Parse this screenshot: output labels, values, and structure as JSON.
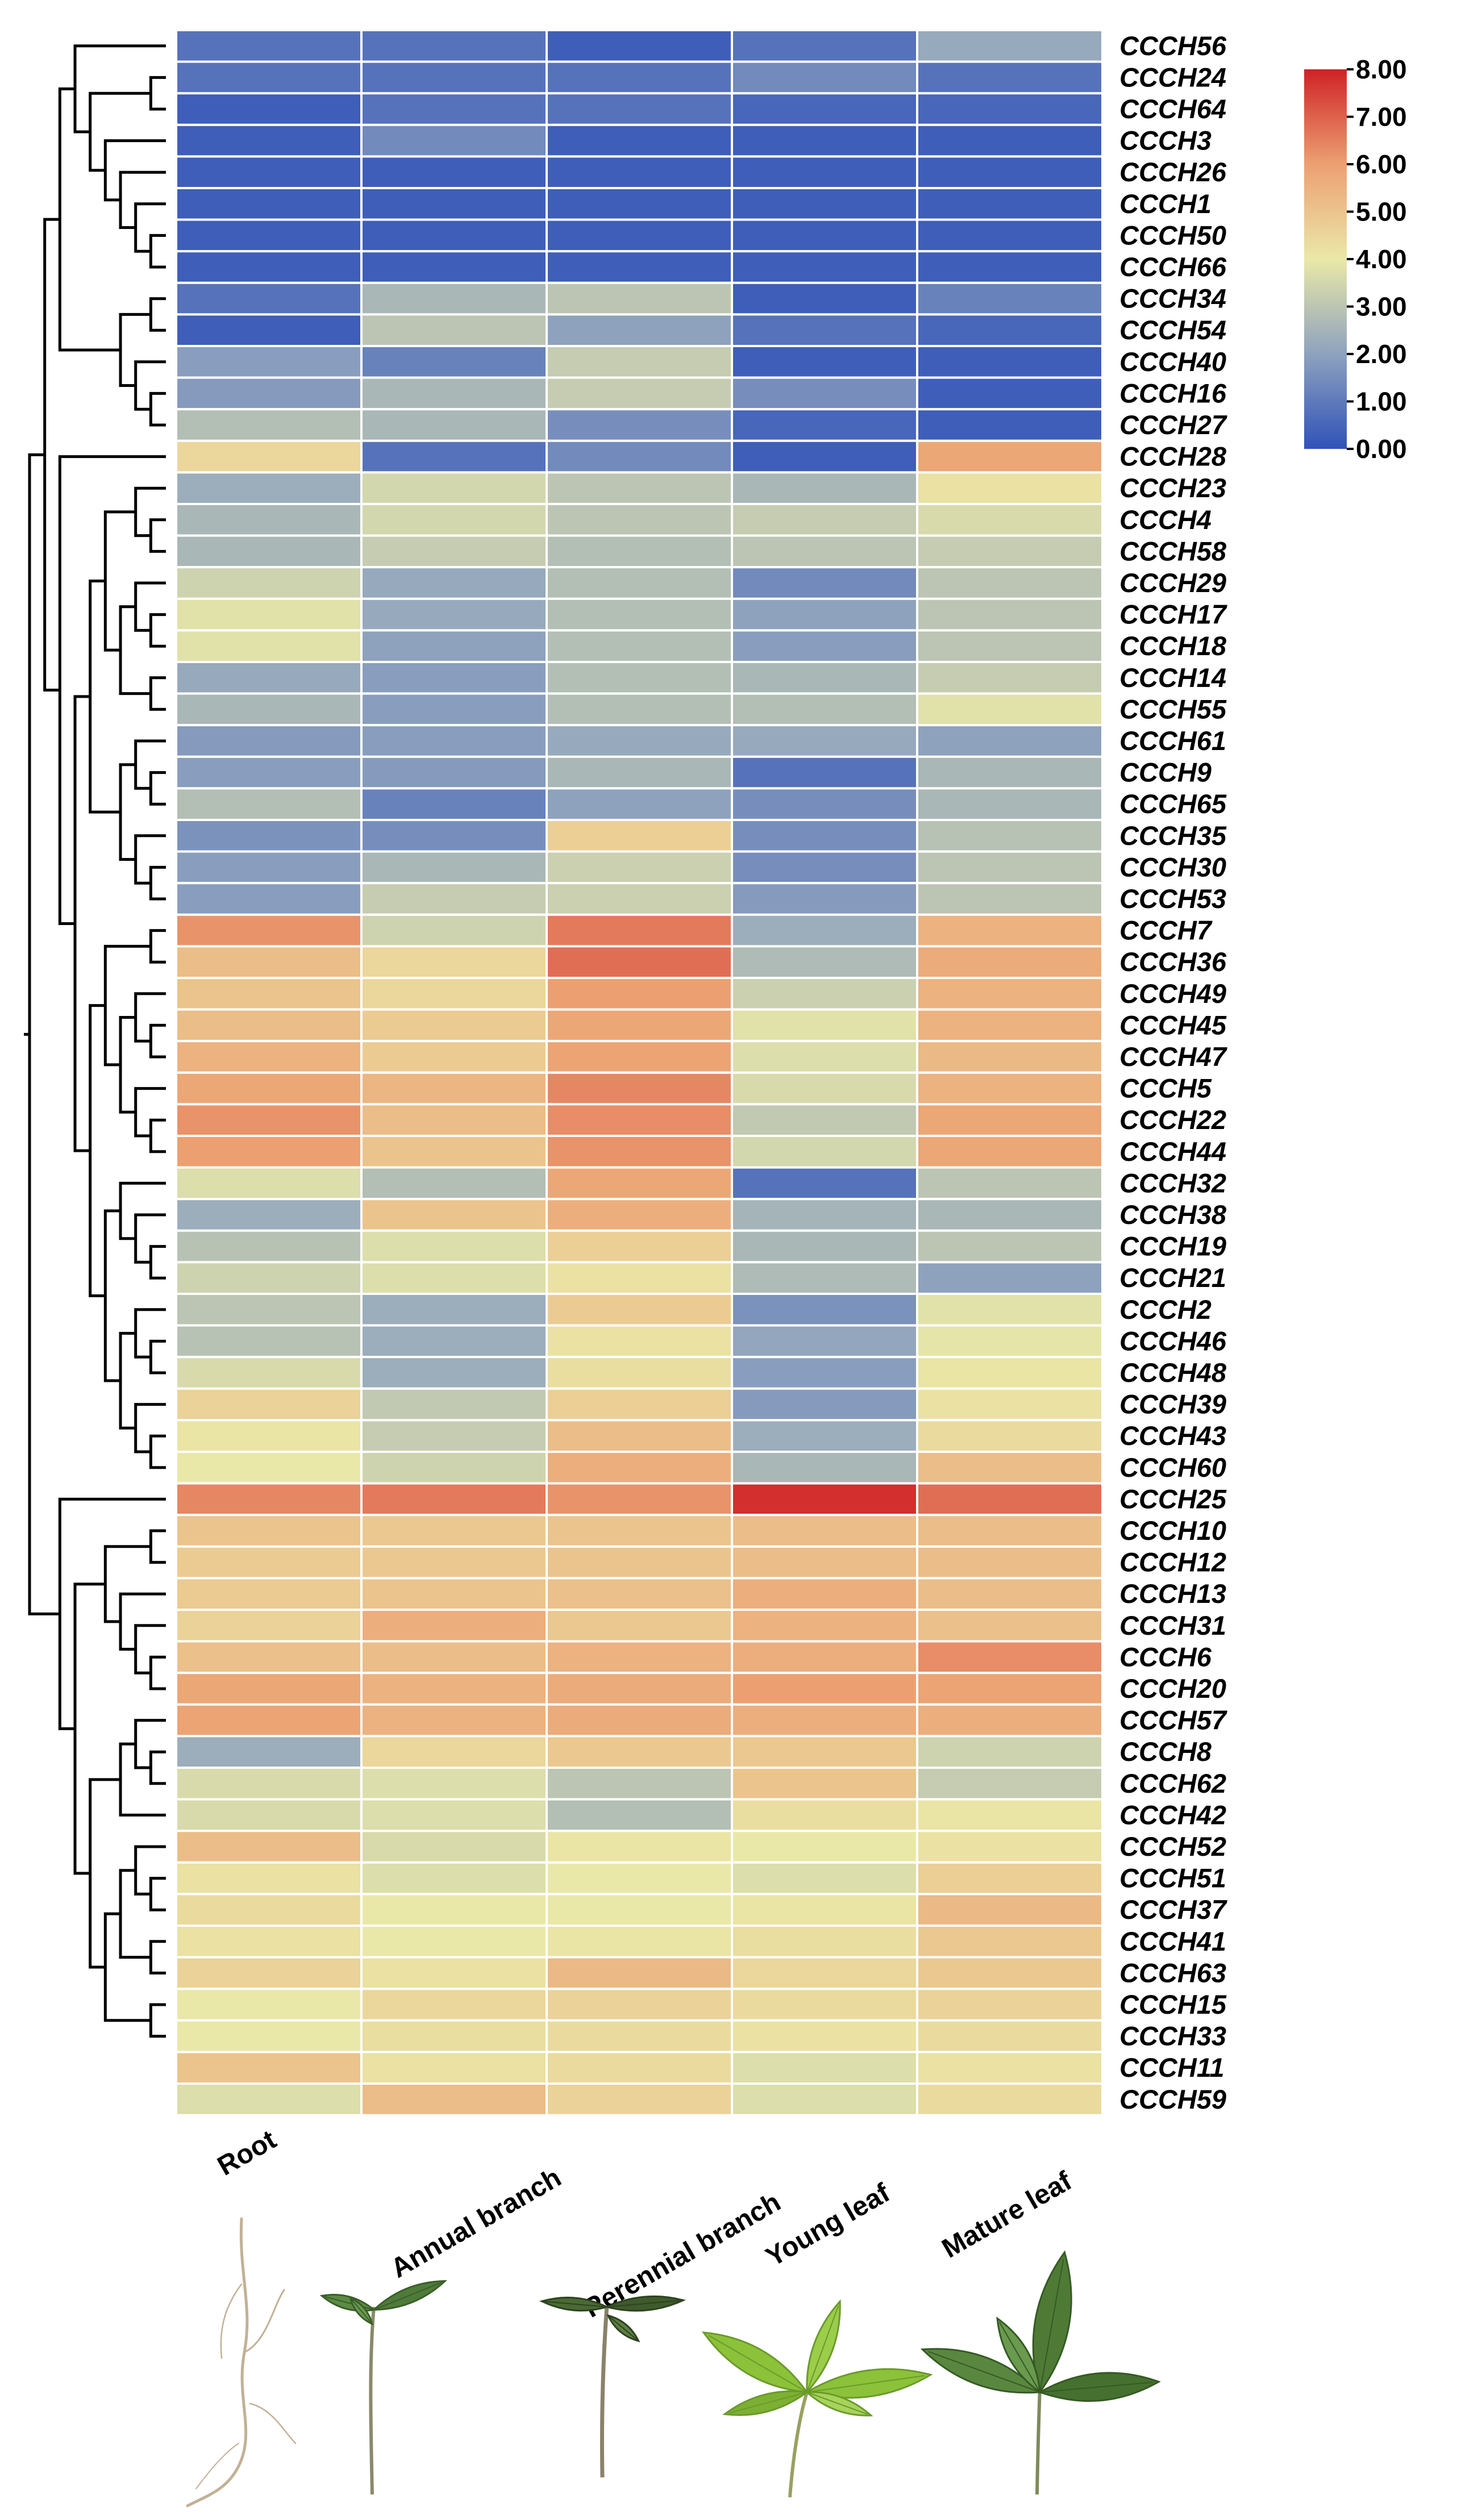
{
  "chart_data": {
    "type": "heatmap",
    "title": "",
    "xlabel": "",
    "ylabel": "",
    "columns": [
      "Root",
      "Annual branch",
      "Perennial branch",
      "Young leaf",
      "Mature leaf"
    ],
    "rows": [
      "CCCH56",
      "CCCH24",
      "CCCH64",
      "CCCH3",
      "CCCH26",
      "CCCH1",
      "CCCH50",
      "CCCH66",
      "CCCH34",
      "CCCH54",
      "CCCH40",
      "CCCH16",
      "CCCH27",
      "CCCH28",
      "CCCH23",
      "CCCH4",
      "CCCH58",
      "CCCH29",
      "CCCH17",
      "CCCH18",
      "CCCH14",
      "CCCH55",
      "CCCH61",
      "CCCH9",
      "CCCH65",
      "CCCH35",
      "CCCH30",
      "CCCH53",
      "CCCH7",
      "CCCH36",
      "CCCH49",
      "CCCH45",
      "CCCH47",
      "CCCH5",
      "CCCH22",
      "CCCH44",
      "CCCH32",
      "CCCH38",
      "CCCH19",
      "CCCH21",
      "CCCH2",
      "CCCH46",
      "CCCH48",
      "CCCH39",
      "CCCH43",
      "CCCH60",
      "CCCH25",
      "CCCH10",
      "CCCH12",
      "CCCH13",
      "CCCH31",
      "CCCH6",
      "CCCH20",
      "CCCH57",
      "CCCH8",
      "CCCH62",
      "CCCH42",
      "CCCH52",
      "CCCH51",
      "CCCH37",
      "CCCH41",
      "CCCH63",
      "CCCH15",
      "CCCH33",
      "CCCH11",
      "CCCH59"
    ],
    "values": [
      [
        0.8,
        0.8,
        0.3,
        0.8,
        2.2
      ],
      [
        0.8,
        0.8,
        0.8,
        1.4,
        0.8
      ],
      [
        0.3,
        0.8,
        0.8,
        0.5,
        0.5
      ],
      [
        0.3,
        1.4,
        0.3,
        0.3,
        0.3
      ],
      [
        0.3,
        0.3,
        0.3,
        0.3,
        0.3
      ],
      [
        0.3,
        0.3,
        0.3,
        0.3,
        0.3
      ],
      [
        0.3,
        0.3,
        0.3,
        0.3,
        0.3
      ],
      [
        0.3,
        0.3,
        0.3,
        0.3,
        0.3
      ],
      [
        0.8,
        2.6,
        3.0,
        0.3,
        1.2
      ],
      [
        0.3,
        3.0,
        2.0,
        0.8,
        0.5
      ],
      [
        1.9,
        1.2,
        3.2,
        0.3,
        0.3
      ],
      [
        1.8,
        2.6,
        3.2,
        1.5,
        0.3
      ],
      [
        2.8,
        2.6,
        1.5,
        0.5,
        0.3
      ],
      [
        4.5,
        0.8,
        1.4,
        0.3,
        5.8
      ],
      [
        2.3,
        3.5,
        3.0,
        2.6,
        4.2
      ],
      [
        2.6,
        3.5,
        3.0,
        3.2,
        3.6
      ],
      [
        2.6,
        3.2,
        2.8,
        3.0,
        3.2
      ],
      [
        3.4,
        2.2,
        2.8,
        1.4,
        3.0
      ],
      [
        3.8,
        2.2,
        2.8,
        2.0,
        3.0
      ],
      [
        3.8,
        2.0,
        2.8,
        1.9,
        3.0
      ],
      [
        2.2,
        1.9,
        2.8,
        2.6,
        3.2
      ],
      [
        2.6,
        1.9,
        2.8,
        2.8,
        3.8
      ],
      [
        1.8,
        1.9,
        2.2,
        2.2,
        2.0
      ],
      [
        1.9,
        1.8,
        2.6,
        0.8,
        2.6
      ],
      [
        2.8,
        1.2,
        2.0,
        1.5,
        2.6
      ],
      [
        1.6,
        1.5,
        4.7,
        1.5,
        2.9
      ],
      [
        1.9,
        2.6,
        3.3,
        1.5,
        3.0
      ],
      [
        1.9,
        3.2,
        3.3,
        1.8,
        3.0
      ],
      [
        6.2,
        3.4,
        6.6,
        2.3,
        5.5
      ],
      [
        5.2,
        4.5,
        6.8,
        2.7,
        5.7
      ],
      [
        5.0,
        4.5,
        6.0,
        3.3,
        5.5
      ],
      [
        5.2,
        4.8,
        5.8,
        3.8,
        5.5
      ],
      [
        5.5,
        4.8,
        5.9,
        3.7,
        5.3
      ],
      [
        5.8,
        5.4,
        6.4,
        3.6,
        5.5
      ],
      [
        6.2,
        5.2,
        6.3,
        3.1,
        5.8
      ],
      [
        6.0,
        5.0,
        6.2,
        3.5,
        5.8
      ],
      [
        3.7,
        2.8,
        5.8,
        0.8,
        3.0
      ],
      [
        2.3,
        5.0,
        5.6,
        2.5,
        2.6
      ],
      [
        2.9,
        3.7,
        4.7,
        2.6,
        3.0
      ],
      [
        3.4,
        3.7,
        4.2,
        2.7,
        2.0
      ],
      [
        3.0,
        2.3,
        4.8,
        1.6,
        3.8
      ],
      [
        2.9,
        2.3,
        4.2,
        2.1,
        3.9
      ],
      [
        3.6,
        2.3,
        4.3,
        1.9,
        4.1
      ],
      [
        4.6,
        3.1,
        4.7,
        1.8,
        4.2
      ],
      [
        4.1,
        3.2,
        5.2,
        2.3,
        4.4
      ],
      [
        4.0,
        3.4,
        5.6,
        2.6,
        5.2
      ],
      [
        6.4,
        6.6,
        6.2,
        7.8,
        6.8
      ],
      [
        5.0,
        4.9,
        5.0,
        5.2,
        5.2
      ],
      [
        4.8,
        4.9,
        5.0,
        5.2,
        5.2
      ],
      [
        4.8,
        5.0,
        5.1,
        5.6,
        5.2
      ],
      [
        4.6,
        5.6,
        4.9,
        5.5,
        5.1
      ],
      [
        5.1,
        5.2,
        5.5,
        5.6,
        6.3
      ],
      [
        5.8,
        5.5,
        5.7,
        6.0,
        5.9
      ],
      [
        5.9,
        5.5,
        5.7,
        5.6,
        5.6
      ],
      [
        2.3,
        4.5,
        4.9,
        4.9,
        3.4
      ],
      [
        3.6,
        3.7,
        3.0,
        5.0,
        3.2
      ],
      [
        3.6,
        3.7,
        2.8,
        4.3,
        4.1
      ],
      [
        5.2,
        3.6,
        4.1,
        4.0,
        4.2
      ],
      [
        4.2,
        3.7,
        4.0,
        3.7,
        4.7
      ],
      [
        4.4,
        4.0,
        4.0,
        4.1,
        5.3
      ],
      [
        4.2,
        4.0,
        4.1,
        4.3,
        4.9
      ],
      [
        4.6,
        4.2,
        5.3,
        4.5,
        4.9
      ],
      [
        4.0,
        4.5,
        4.6,
        4.4,
        4.6
      ],
      [
        4.0,
        4.3,
        4.4,
        4.2,
        4.4
      ],
      [
        5.0,
        4.2,
        4.4,
        3.7,
        4.2
      ],
      [
        3.7,
        5.2,
        4.6,
        3.7,
        4.4
      ]
    ],
    "scale": {
      "min": 0,
      "max": 8,
      "ticks": [
        "0.00",
        "1.00",
        "2.00",
        "3.00",
        "4.00",
        "5.00",
        "6.00",
        "7.00",
        "8.00"
      ],
      "colors": [
        "#3052b8",
        "#8ea2be",
        "#eae8a8",
        "#eca072",
        "#cf2226"
      ]
    },
    "dendrogram": "left",
    "legend_position": "top-right",
    "tissue_images": [
      "root",
      "annual-branch",
      "perennial-branch",
      "young-leaf",
      "mature-leaf"
    ]
  }
}
